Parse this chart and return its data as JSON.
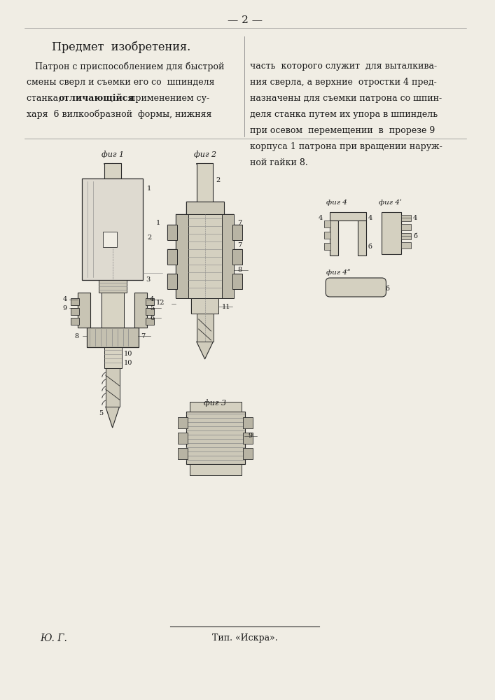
{
  "page_number": "— 2 —",
  "header_title": "Предмет  изобретения.",
  "left_text_line1": "   Патрон с приспособлением для быстрой",
  "left_text_line2": "смены сверл и съемки его со  шпинделя",
  "left_text_line3a": "станка,  ",
  "left_text_line3b": "отличающійся",
  "left_text_line3c": "  применением су-",
  "left_text_line4": "харя  6 вилкообразной  формы, нижняя",
  "right_text_line1": "часть  которого служит  для выталкива-",
  "right_text_line2": "ния сверла, а верхние  отростки 4 пред-",
  "right_text_line3": "назначены для съемки патрона со шпин-",
  "right_text_line4": "деля станка путем их упора в шпиндель",
  "right_text_line5": "при осевом  перемещении  в  прорезе 9",
  "right_text_line6": "корпуса 1 патрона при вращении наруж-",
  "right_text_line7": "ной гайки 8.",
  "footer_left": "Ю. Г.",
  "footer_center": "Тип. «Искра».",
  "bg_color": "#f0ede4",
  "text_color": "#1a1a1a",
  "line_color": "#2a2a2a",
  "hatch_color": "#555555",
  "text_font_size": 9.0,
  "header_font_size": 11.5
}
